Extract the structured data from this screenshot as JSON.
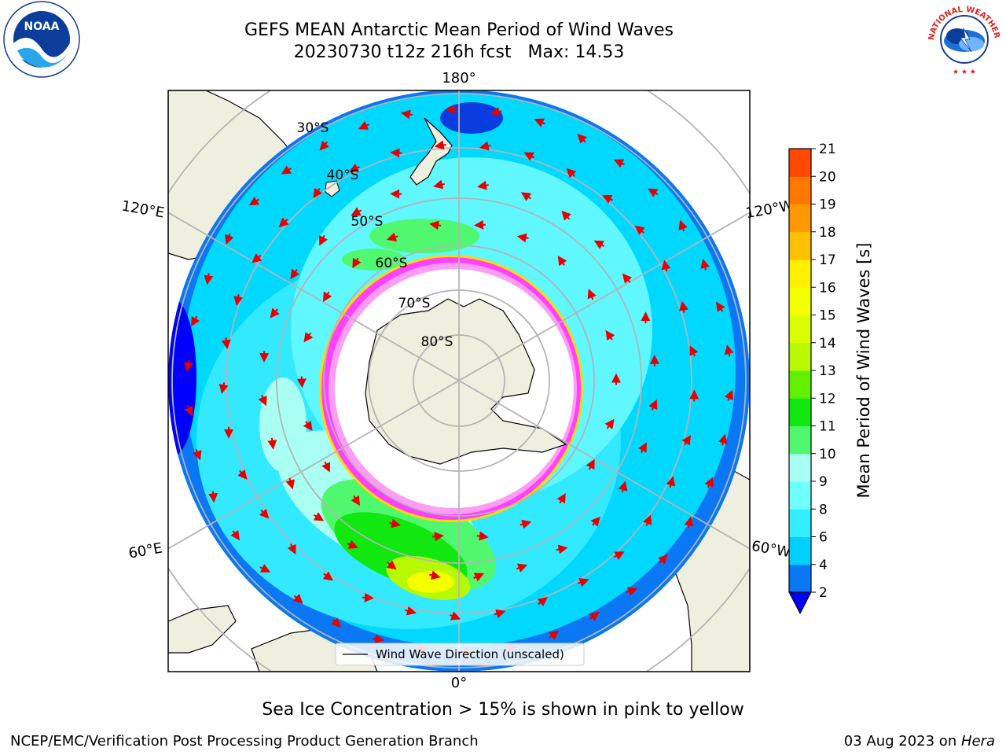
{
  "title": {
    "line1": "GEFS MEAN Antarctic Mean Period of Wind Waves",
    "line2": "20230730 t12z 216h fcst   Max: 14.53"
  },
  "caption": "Sea Ice Concentration > 15% is shown in pink to yellow",
  "footer": {
    "left": "NCEP/EMC/Verification Post Processing Product Generation Branch",
    "date": "03 Aug 2023 on ",
    "machine": "Hera"
  },
  "logos": {
    "noara": "NOAA",
    "nws": "NATIONAL WEATHER SERVICE"
  },
  "map": {
    "longitude_labels": {
      "top": "180°",
      "left": "120°E",
      "right": "120°W",
      "lower_left": "60°E",
      "lower_right": "60°W",
      "bottom": "0°"
    },
    "latitude_labels": [
      "30°S",
      "40°S",
      "50°S",
      "60°S",
      "70°S",
      "80°S"
    ],
    "legend": "Wind Wave Direction (unscaled)"
  },
  "colorbar": {
    "label": "Mean Period of Wind Waves [s]",
    "ticks": [
      "2",
      "4",
      "6",
      "8",
      "9",
      "10",
      "11",
      "12",
      "13",
      "14",
      "15",
      "16",
      "17",
      "18",
      "19",
      "20",
      "21"
    ],
    "colors": [
      "#0a77f4",
      "#00d0ff",
      "#32eeff",
      "#70ffff",
      "#a8fff2",
      "#50f870",
      "#10e810",
      "#62f000",
      "#b8f800",
      "#daff00",
      "#f4ff00",
      "#fff000",
      "#ffc000",
      "#ff9800",
      "#ff7800",
      "#ff4800",
      "#ff1800",
      "#ff0000"
    ],
    "underflow_color": "#0000ff"
  },
  "colors": {
    "ocean_deep": "#0a77f4",
    "ocean_mid": "#00d8ff",
    "ocean_light": "#60f7ff",
    "land": "#efefdf",
    "arrow": "#e60000",
    "ice_pink": "#ff40ff",
    "ice_yellow": "#ffd800"
  }
}
